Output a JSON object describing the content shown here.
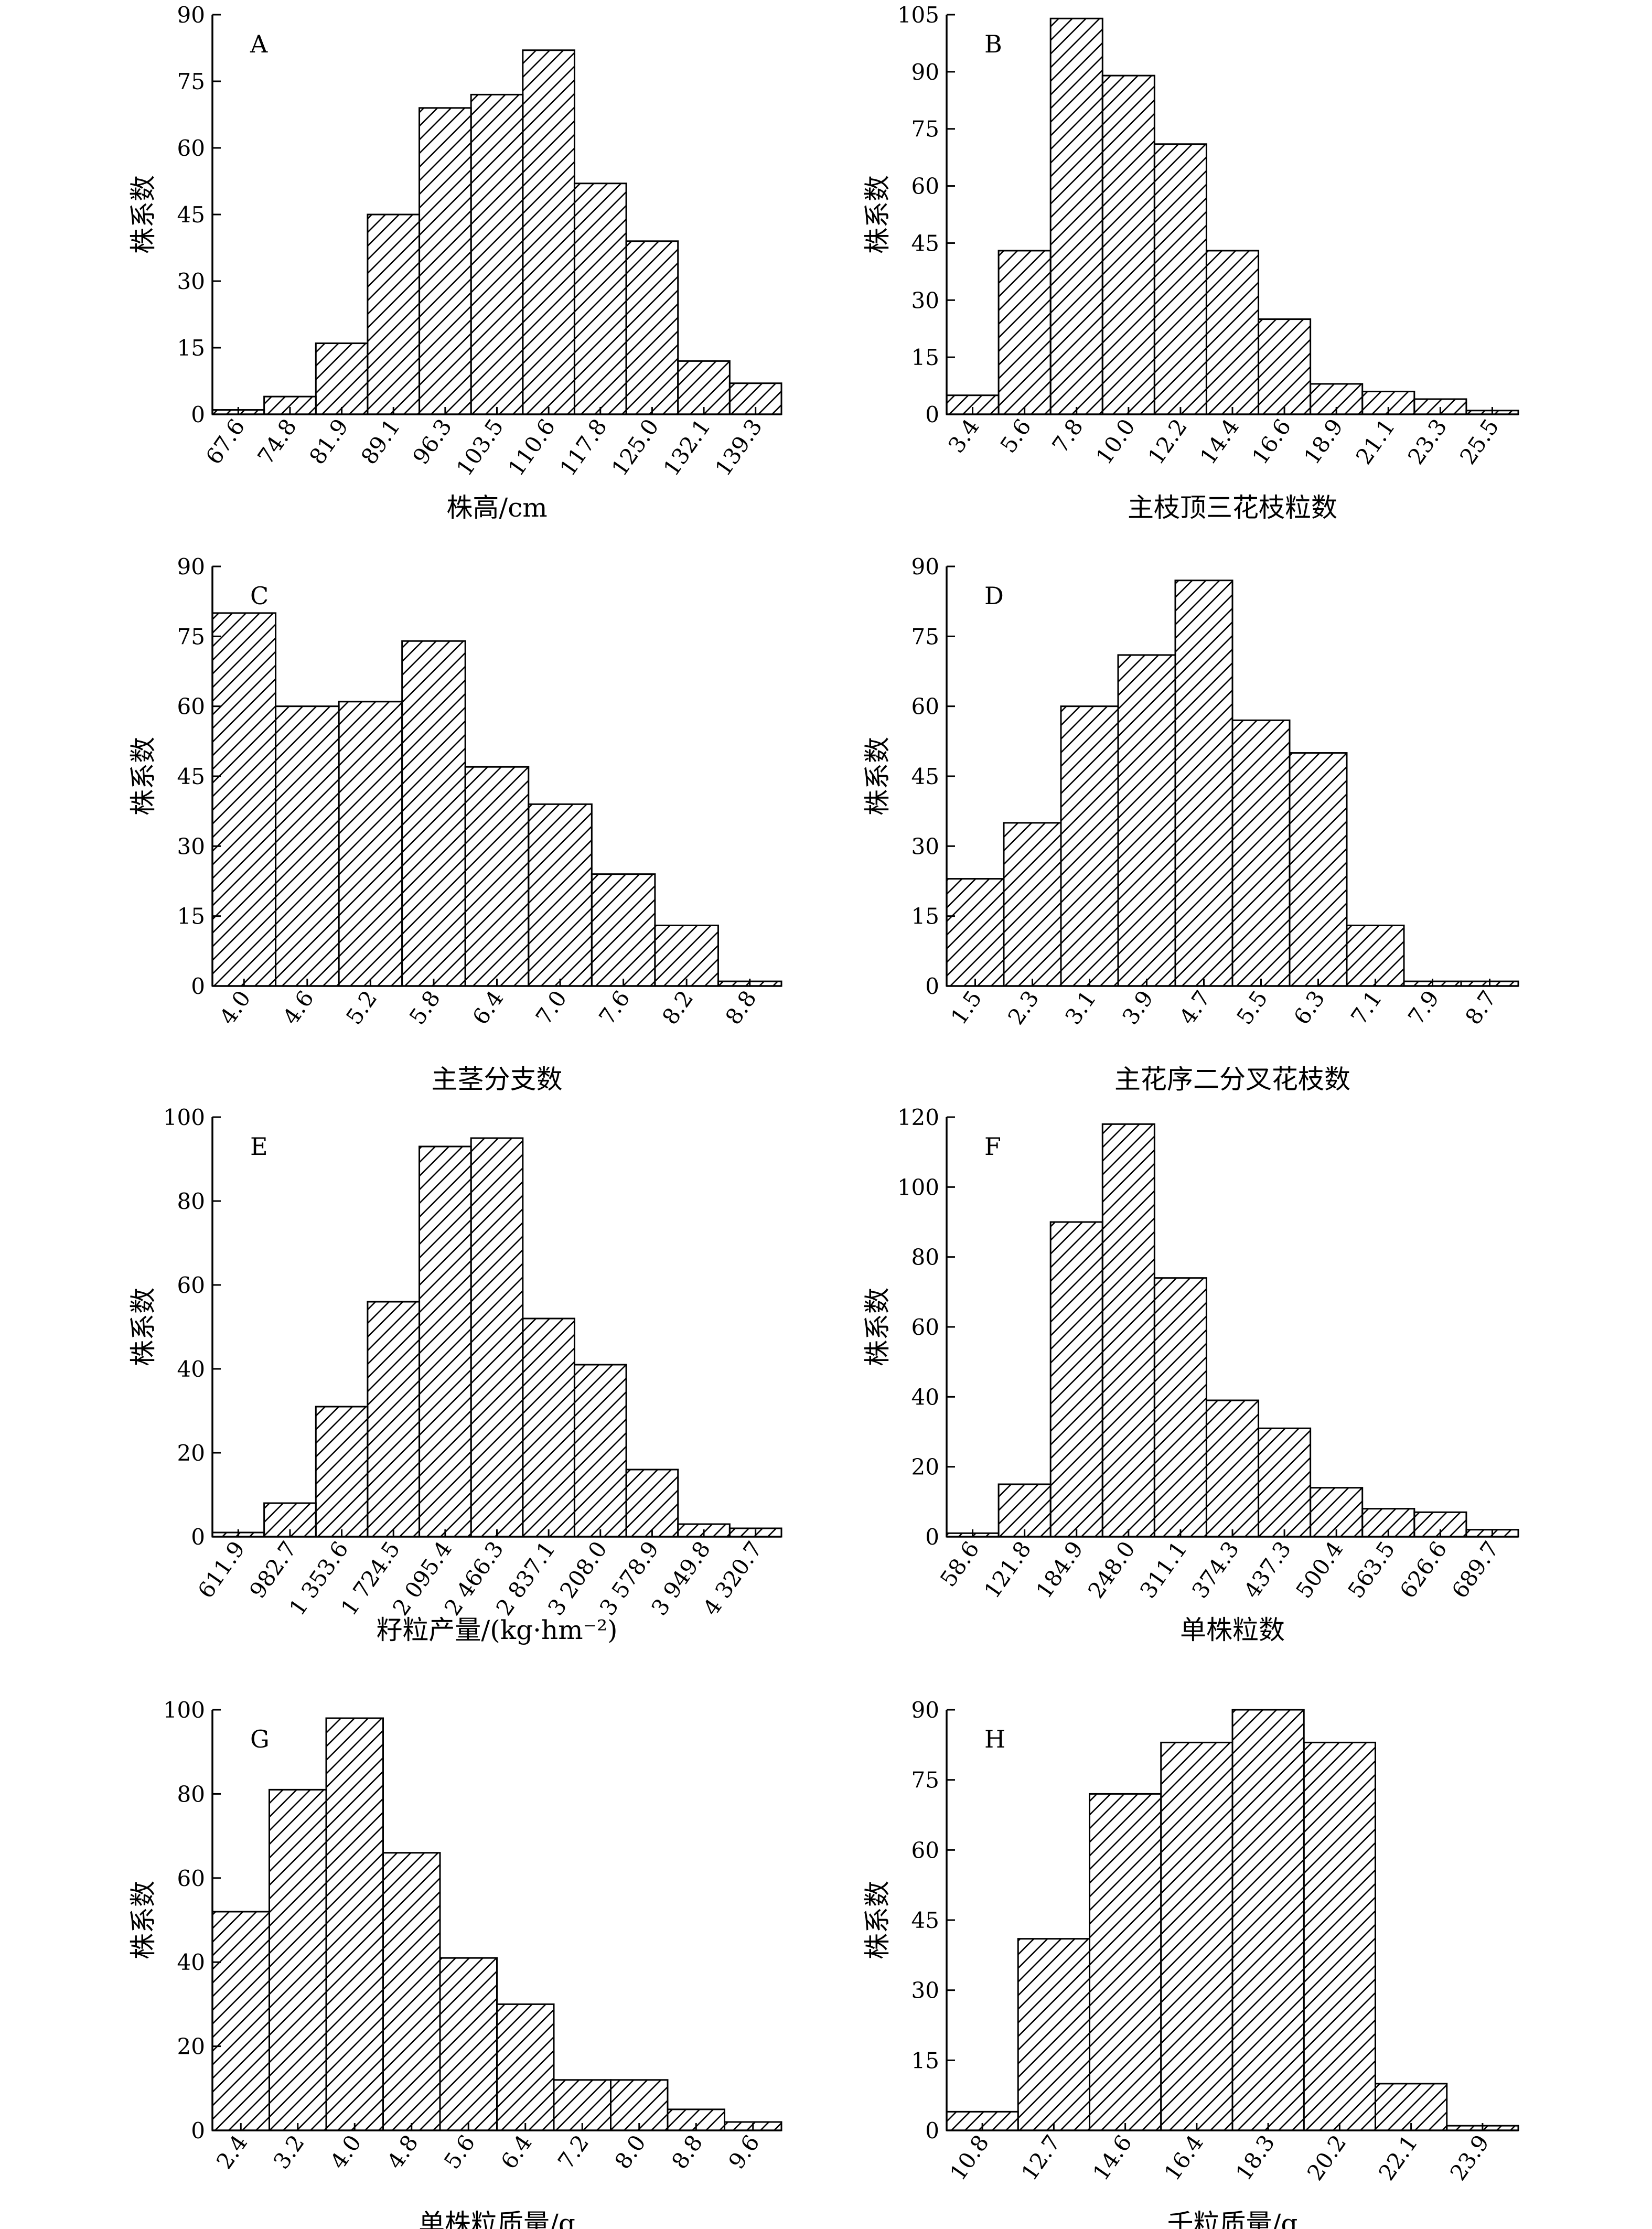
{
  "chart_data": [
    {
      "type": "bar",
      "panel_label": "A",
      "xlabel": "株高/cm",
      "ylabel": "株系数",
      "categories": [
        "67.6",
        "74.8",
        "81.9",
        "89.1",
        "96.3",
        "103.5",
        "110.6",
        "117.8",
        "125.0",
        "132.1",
        "139.3"
      ],
      "values": [
        1,
        4,
        16,
        45,
        69,
        72,
        82,
        52,
        39,
        12,
        7
      ],
      "ylim": [
        0,
        90
      ],
      "yticks": [
        "0",
        "15",
        "30",
        "45",
        "60",
        "75",
        "90"
      ],
      "grid": false,
      "fill": "hatched"
    },
    {
      "type": "bar",
      "panel_label": "B",
      "xlabel": "主枝顶三花枝粒数",
      "ylabel": "株系数",
      "categories": [
        "3.4",
        "5.6",
        "7.8",
        "10.0",
        "12.2",
        "14.4",
        "16.6",
        "18.9",
        "21.1",
        "23.3",
        "25.5"
      ],
      "values": [
        5,
        43,
        104,
        89,
        71,
        43,
        25,
        8,
        6,
        4,
        1
      ],
      "ylim": [
        0,
        105
      ],
      "yticks": [
        "0",
        "15",
        "30",
        "45",
        "60",
        "75",
        "90",
        "105"
      ],
      "grid": false,
      "fill": "hatched"
    },
    {
      "type": "bar",
      "panel_label": "C",
      "xlabel": "主茎分支数",
      "ylabel": "株系数",
      "categories": [
        "4.0",
        "4.6",
        "5.2",
        "5.8",
        "6.4",
        "7.0",
        "7.6",
        "8.2",
        "8.8"
      ],
      "values": [
        80,
        60,
        61,
        74,
        47,
        39,
        24,
        13,
        1
      ],
      "ylim": [
        0,
        90
      ],
      "yticks": [
        "0",
        "15",
        "30",
        "45",
        "60",
        "75",
        "90"
      ],
      "grid": false,
      "fill": "hatched"
    },
    {
      "type": "bar",
      "panel_label": "D",
      "xlabel": "主花序二分叉花枝数",
      "ylabel": "株系数",
      "categories": [
        "1.5",
        "2.3",
        "3.1",
        "3.9",
        "4.7",
        "5.5",
        "6.3",
        "7.1",
        "7.9",
        "8.7"
      ],
      "values": [
        23,
        35,
        60,
        71,
        87,
        57,
        50,
        13,
        1,
        1
      ],
      "ylim": [
        0,
        90
      ],
      "yticks": [
        "0",
        "15",
        "30",
        "45",
        "60",
        "75",
        "90"
      ],
      "grid": false,
      "fill": "hatched"
    },
    {
      "type": "bar",
      "panel_label": "E",
      "xlabel": "籽粒产量/(kg·hm⁻²)",
      "ylabel": "株系数",
      "categories": [
        "611.9",
        "982.7",
        "1 353.6",
        "1 724.5",
        "2 095.4",
        "2 466.3",
        "2 837.1",
        "3 208.0",
        "3 578.9",
        "3 949.8",
        "4 320.7"
      ],
      "values": [
        1,
        8,
        31,
        56,
        93,
        95,
        52,
        41,
        16,
        3,
        2
      ],
      "ylim": [
        0,
        100
      ],
      "yticks": [
        "0",
        "20",
        "40",
        "60",
        "80",
        "100"
      ],
      "grid": false,
      "fill": "hatched"
    },
    {
      "type": "bar",
      "panel_label": "F",
      "xlabel": "单株粒数",
      "ylabel": "株系数",
      "categories": [
        "58.6",
        "121.8",
        "184.9",
        "248.0",
        "311.1",
        "374.3",
        "437.3",
        "500.4",
        "563.5",
        "626.6",
        "689.7"
      ],
      "values": [
        1,
        15,
        90,
        118,
        74,
        39,
        31,
        14,
        8,
        7,
        2
      ],
      "ylim": [
        0,
        120
      ],
      "yticks": [
        "0",
        "20",
        "40",
        "60",
        "80",
        "100",
        "120"
      ],
      "grid": false,
      "fill": "hatched"
    },
    {
      "type": "bar",
      "panel_label": "G",
      "xlabel": "单株粒质量/g",
      "ylabel": "株系数",
      "categories": [
        "2.4",
        "3.2",
        "4.0",
        "4.8",
        "5.6",
        "6.4",
        "7.2",
        "8.0",
        "8.8",
        "9.6"
      ],
      "values": [
        52,
        81,
        98,
        66,
        41,
        30,
        12,
        12,
        5,
        2
      ],
      "ylim": [
        0,
        100
      ],
      "yticks": [
        "0",
        "20",
        "40",
        "60",
        "80",
        "100"
      ],
      "grid": false,
      "fill": "hatched"
    },
    {
      "type": "bar",
      "panel_label": "H",
      "xlabel": "千粒质量/g",
      "ylabel": "株系数",
      "categories": [
        "10.8",
        "12.7",
        "14.6",
        "16.4",
        "18.3",
        "20.2",
        "22.1",
        "23.9"
      ],
      "values": [
        4,
        41,
        72,
        83,
        90,
        83,
        10,
        1
      ],
      "ylim": [
        0,
        90
      ],
      "yticks": [
        "0",
        "15",
        "30",
        "45",
        "60",
        "75",
        "90"
      ],
      "grid": false,
      "fill": "hatched"
    }
  ]
}
